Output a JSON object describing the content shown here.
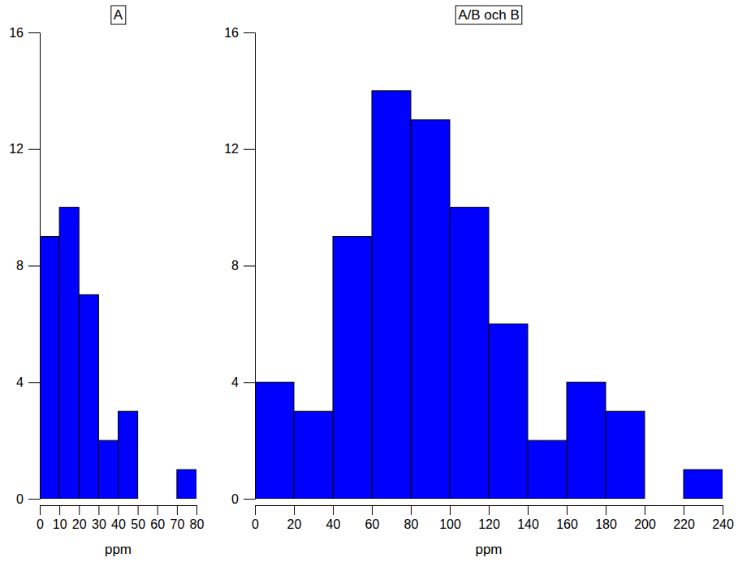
{
  "chart_data": [
    {
      "type": "histogram",
      "title": "A",
      "x_label": "ppm",
      "bins": [
        0,
        10,
        20,
        30,
        40,
        50,
        60,
        70,
        80
      ],
      "values": [
        9,
        10,
        7,
        2,
        3,
        0,
        0,
        1
      ],
      "color": "#0000ff",
      "xlim": [
        0,
        80
      ],
      "xticks": [
        0,
        10,
        20,
        30,
        40,
        50,
        60,
        70,
        80
      ],
      "ylim": [
        0,
        16
      ],
      "yticks": [
        0,
        4,
        8,
        12,
        16
      ]
    },
    {
      "type": "histogram",
      "title": "A/B och B",
      "x_label": "ppm",
      "bins": [
        0,
        20,
        40,
        60,
        80,
        100,
        120,
        140,
        160,
        180,
        200,
        220,
        240
      ],
      "values": [
        4,
        3,
        9,
        14,
        13,
        10,
        6,
        2,
        4,
        3,
        0,
        1
      ],
      "color": "#0000ff",
      "xlim": [
        0,
        240
      ],
      "xticks": [
        0,
        20,
        40,
        60,
        80,
        100,
        120,
        140,
        160,
        180,
        200,
        220,
        240
      ],
      "ylim": [
        0,
        16
      ],
      "yticks": [
        0,
        4,
        8,
        12,
        16
      ]
    }
  ]
}
